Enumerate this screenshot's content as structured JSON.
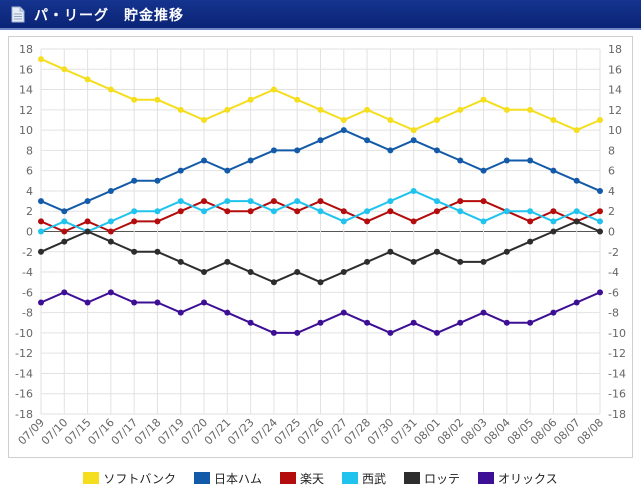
{
  "header": {
    "title": "パ・リーグ　貯金推移",
    "icon": "document-icon"
  },
  "chart_data": {
    "type": "line",
    "title": "",
    "xlabel": "",
    "ylabel": "",
    "ylim": [
      -18,
      18
    ],
    "yticks": [
      18,
      16,
      14,
      12,
      10,
      8,
      6,
      4,
      2,
      0,
      -2,
      -4,
      -6,
      -8,
      -10,
      -12,
      -14,
      -16,
      -18
    ],
    "grid": true,
    "legend_position": "bottom",
    "categories": [
      "07/09",
      "07/10",
      "07/15",
      "07/16",
      "07/17",
      "07/18",
      "07/19",
      "07/20",
      "07/21",
      "07/23",
      "07/24",
      "07/25",
      "07/26",
      "07/27",
      "07/28",
      "07/30",
      "07/31",
      "08/01",
      "08/02",
      "08/03",
      "08/04",
      "08/05",
      "08/06",
      "08/07",
      "08/08"
    ],
    "series": [
      {
        "name": "ソフトバンク",
        "color": "#f5de1e",
        "values": [
          17,
          16,
          15,
          14,
          13,
          13,
          12,
          11,
          12,
          13,
          14,
          13,
          12,
          11,
          12,
          11,
          10,
          11,
          12,
          13,
          12,
          12,
          11,
          10,
          11
        ]
      },
      {
        "name": "日本ハム",
        "color": "#135ba8",
        "values": [
          3,
          2,
          3,
          4,
          5,
          5,
          6,
          7,
          6,
          7,
          8,
          8,
          9,
          10,
          9,
          8,
          9,
          8,
          7,
          6,
          7,
          7,
          6,
          5,
          4
        ]
      },
      {
        "name": "楽天",
        "color": "#b40c0c",
        "values": [
          1,
          0,
          1,
          0,
          1,
          1,
          2,
          3,
          2,
          2,
          3,
          2,
          3,
          2,
          1,
          2,
          1,
          2,
          3,
          3,
          2,
          1,
          2,
          1,
          2
        ]
      },
      {
        "name": "西武",
        "color": "#1fc3ee",
        "values": [
          0,
          1,
          0,
          1,
          2,
          2,
          3,
          2,
          3,
          3,
          2,
          3,
          2,
          1,
          2,
          3,
          4,
          3,
          2,
          1,
          2,
          2,
          1,
          2,
          1
        ]
      },
      {
        "name": "ロッテ",
        "color": "#2d2d2d",
        "values": [
          -2,
          -1,
          0,
          -1,
          -2,
          -2,
          -3,
          -4,
          -3,
          -4,
          -5,
          -4,
          -5,
          -4,
          -3,
          -2,
          -3,
          -2,
          -3,
          -3,
          -2,
          -1,
          0,
          1,
          0
        ]
      },
      {
        "name": "オリックス",
        "color": "#3d0f95",
        "values": [
          -7,
          -6,
          -7,
          -6,
          -7,
          -7,
          -8,
          -7,
          -8,
          -9,
          -10,
          -10,
          -9,
          -8,
          -9,
          -10,
          -9,
          -10,
          -9,
          -8,
          -9,
          -9,
          -8,
          -7,
          -6
        ]
      }
    ]
  }
}
